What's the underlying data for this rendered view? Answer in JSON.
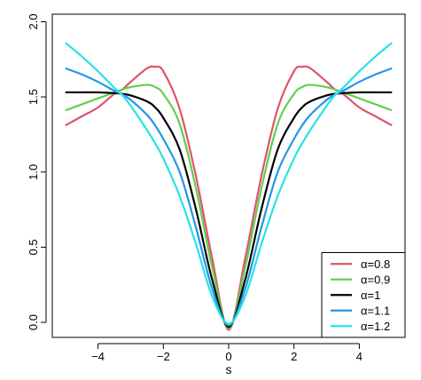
{
  "chart_data": {
    "type": "line",
    "title": "",
    "xlabel": "s",
    "ylabel": "",
    "xlim": [
      -5.4,
      5.4
    ],
    "ylim": [
      -0.1,
      2.05
    ],
    "x_ticks": [
      -4,
      -2,
      0,
      2,
      4
    ],
    "x_tick_labels": [
      "−4",
      "−2",
      "0",
      "2",
      "4"
    ],
    "y_ticks": [
      0.0,
      0.5,
      1.0,
      1.5,
      2.0
    ],
    "y_tick_labels": [
      "0.0",
      "0.5",
      "1.0",
      "1.5",
      "2.0"
    ],
    "grid": false,
    "legend_position": "bottom-right",
    "x": [
      -5.0,
      -4.5,
      -4.0,
      -3.5,
      -3.25,
      -3.0,
      -2.5,
      -2.25,
      -2.0,
      -1.5,
      -1.0,
      -0.5,
      0.0,
      0.5,
      1.0,
      1.5,
      2.0,
      2.25,
      2.5,
      3.0,
      3.25,
      3.5,
      4.0,
      4.5,
      5.0
    ],
    "series": [
      {
        "name": "α=0.8",
        "color": "#df536b",
        "values": [
          1.31,
          1.37,
          1.43,
          1.52,
          1.55,
          1.6,
          1.69,
          1.7,
          1.67,
          1.42,
          0.97,
          0.42,
          -0.05,
          0.42,
          0.97,
          1.42,
          1.67,
          1.7,
          1.69,
          1.6,
          1.55,
          1.52,
          1.43,
          1.37,
          1.31
        ]
      },
      {
        "name": "α=0.9",
        "color": "#61d04f",
        "values": [
          1.41,
          1.45,
          1.49,
          1.53,
          1.55,
          1.565,
          1.58,
          1.565,
          1.52,
          1.32,
          0.89,
          0.36,
          -0.04,
          0.36,
          0.89,
          1.32,
          1.52,
          1.565,
          1.58,
          1.565,
          1.55,
          1.53,
          1.49,
          1.45,
          1.41
        ]
      },
      {
        "name": "α=1",
        "color": "#000000",
        "values": [
          1.53,
          1.53,
          1.53,
          1.525,
          1.52,
          1.51,
          1.47,
          1.43,
          1.36,
          1.15,
          0.75,
          0.28,
          -0.03,
          0.28,
          0.75,
          1.15,
          1.36,
          1.43,
          1.47,
          1.51,
          1.52,
          1.525,
          1.53,
          1.53,
          1.53
        ]
      },
      {
        "name": "α=1.1",
        "color": "#2297e6",
        "values": [
          1.69,
          1.65,
          1.6,
          1.54,
          1.515,
          1.48,
          1.38,
          1.31,
          1.22,
          1.0,
          0.63,
          0.22,
          -0.02,
          0.22,
          0.63,
          1.0,
          1.22,
          1.31,
          1.38,
          1.48,
          1.515,
          1.54,
          1.6,
          1.65,
          1.69
        ]
      },
      {
        "name": "α=1.2",
        "color": "#28e2e5",
        "values": [
          1.86,
          1.77,
          1.67,
          1.56,
          1.51,
          1.44,
          1.28,
          1.19,
          1.09,
          0.84,
          0.52,
          0.17,
          -0.01,
          0.17,
          0.52,
          0.84,
          1.09,
          1.19,
          1.28,
          1.44,
          1.51,
          1.56,
          1.67,
          1.77,
          1.86
        ]
      }
    ]
  }
}
